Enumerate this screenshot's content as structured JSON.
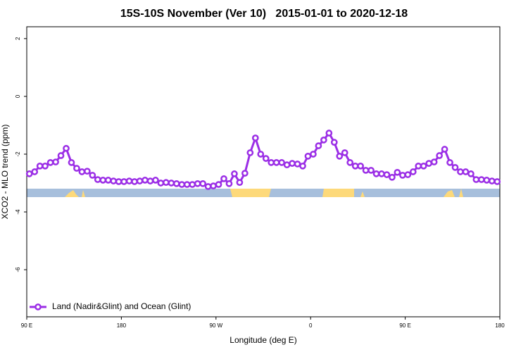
{
  "chart_data": {
    "type": "line",
    "title": "15S-10S November (Ver 10)   2015-01-01 to 2020-12-18",
    "x_label": "Longitude (deg E)",
    "y_label": "XCO2 - MLO trend (ppm)",
    "xlim": [
      90,
      540
    ],
    "ylim": [
      -7.63,
      2.41
    ],
    "xticks": [
      {
        "value": 90,
        "label": "90 E"
      },
      180,
      {
        "value": 270,
        "label": "90 W"
      },
      {
        "value": 360,
        "label": "0"
      },
      {
        "value": 450,
        "label": "90 E"
      },
      {
        "value": 540,
        "label": "180"
      }
    ],
    "yticks": [
      -6,
      -4,
      -2,
      0,
      2
    ],
    "legend": "bottom-left",
    "x": [
      92.5,
      97.5,
      102.5,
      107.5,
      112.5,
      117.5,
      122.5,
      127.5,
      132.5,
      137.5,
      142.5,
      147.5,
      152.5,
      157.5,
      162.5,
      167.5,
      172.5,
      177.5,
      182.5,
      187.5,
      192.5,
      197.5,
      202.5,
      207.5,
      212.5,
      217.5,
      222.5,
      227.5,
      232.5,
      237.5,
      242.5,
      247.5,
      252.5,
      257.5,
      262.5,
      267.5,
      272.5,
      277.5,
      282.5,
      287.5,
      292.5,
      297.5,
      302.5,
      307.5,
      312.5,
      317.5,
      322.5,
      327.5,
      332.5,
      337.5,
      342.5,
      347.5,
      352.5,
      357.5,
      362.5,
      367.5,
      372.5,
      377.5,
      382.5,
      387.5,
      392.5,
      397.5,
      402.5,
      407.5,
      412.5,
      417.5,
      422.5,
      427.5,
      432.5,
      437.5,
      442.5,
      447.5,
      452.5,
      457.5,
      462.5,
      467.5,
      472.5,
      477.5,
      482.5,
      487.5,
      492.5,
      497.5,
      502.5,
      507.5,
      512.5,
      517.5,
      522.5,
      527.5,
      532.5,
      537.5
    ],
    "series": [
      {
        "name": "Land (Nadir&Glint) and Ocean (Glint)",
        "color": "#9b2ee6",
        "values": [
          -2.68,
          -2.61,
          -2.41,
          -2.41,
          -2.29,
          -2.27,
          -2.05,
          -1.8,
          -2.29,
          -2.49,
          -2.61,
          -2.59,
          -2.73,
          -2.88,
          -2.9,
          -2.9,
          -2.93,
          -2.95,
          -2.95,
          -2.93,
          -2.95,
          -2.93,
          -2.9,
          -2.93,
          -2.9,
          -3.0,
          -2.98,
          -3.0,
          -3.02,
          -3.05,
          -3.05,
          -3.05,
          -3.02,
          -3.02,
          -3.12,
          -3.1,
          -3.05,
          -2.85,
          -3.02,
          -2.68,
          -2.98,
          -2.66,
          -1.95,
          -1.44,
          -2.0,
          -2.15,
          -2.29,
          -2.29,
          -2.29,
          -2.37,
          -2.32,
          -2.34,
          -2.41,
          -2.07,
          -2.0,
          -1.71,
          -1.51,
          -1.27,
          -1.59,
          -2.07,
          -1.95,
          -2.29,
          -2.41,
          -2.41,
          -2.56,
          -2.56,
          -2.68,
          -2.68,
          -2.71,
          -2.8,
          -2.63,
          -2.73,
          -2.71,
          -2.61,
          -2.41,
          -2.41,
          -2.32,
          -2.27,
          -2.05,
          -1.83,
          -2.29,
          -2.46,
          -2.61,
          -2.61,
          -2.68,
          -2.88,
          -2.88,
          -2.9,
          -2.93,
          -2.95
        ]
      }
    ]
  }
}
